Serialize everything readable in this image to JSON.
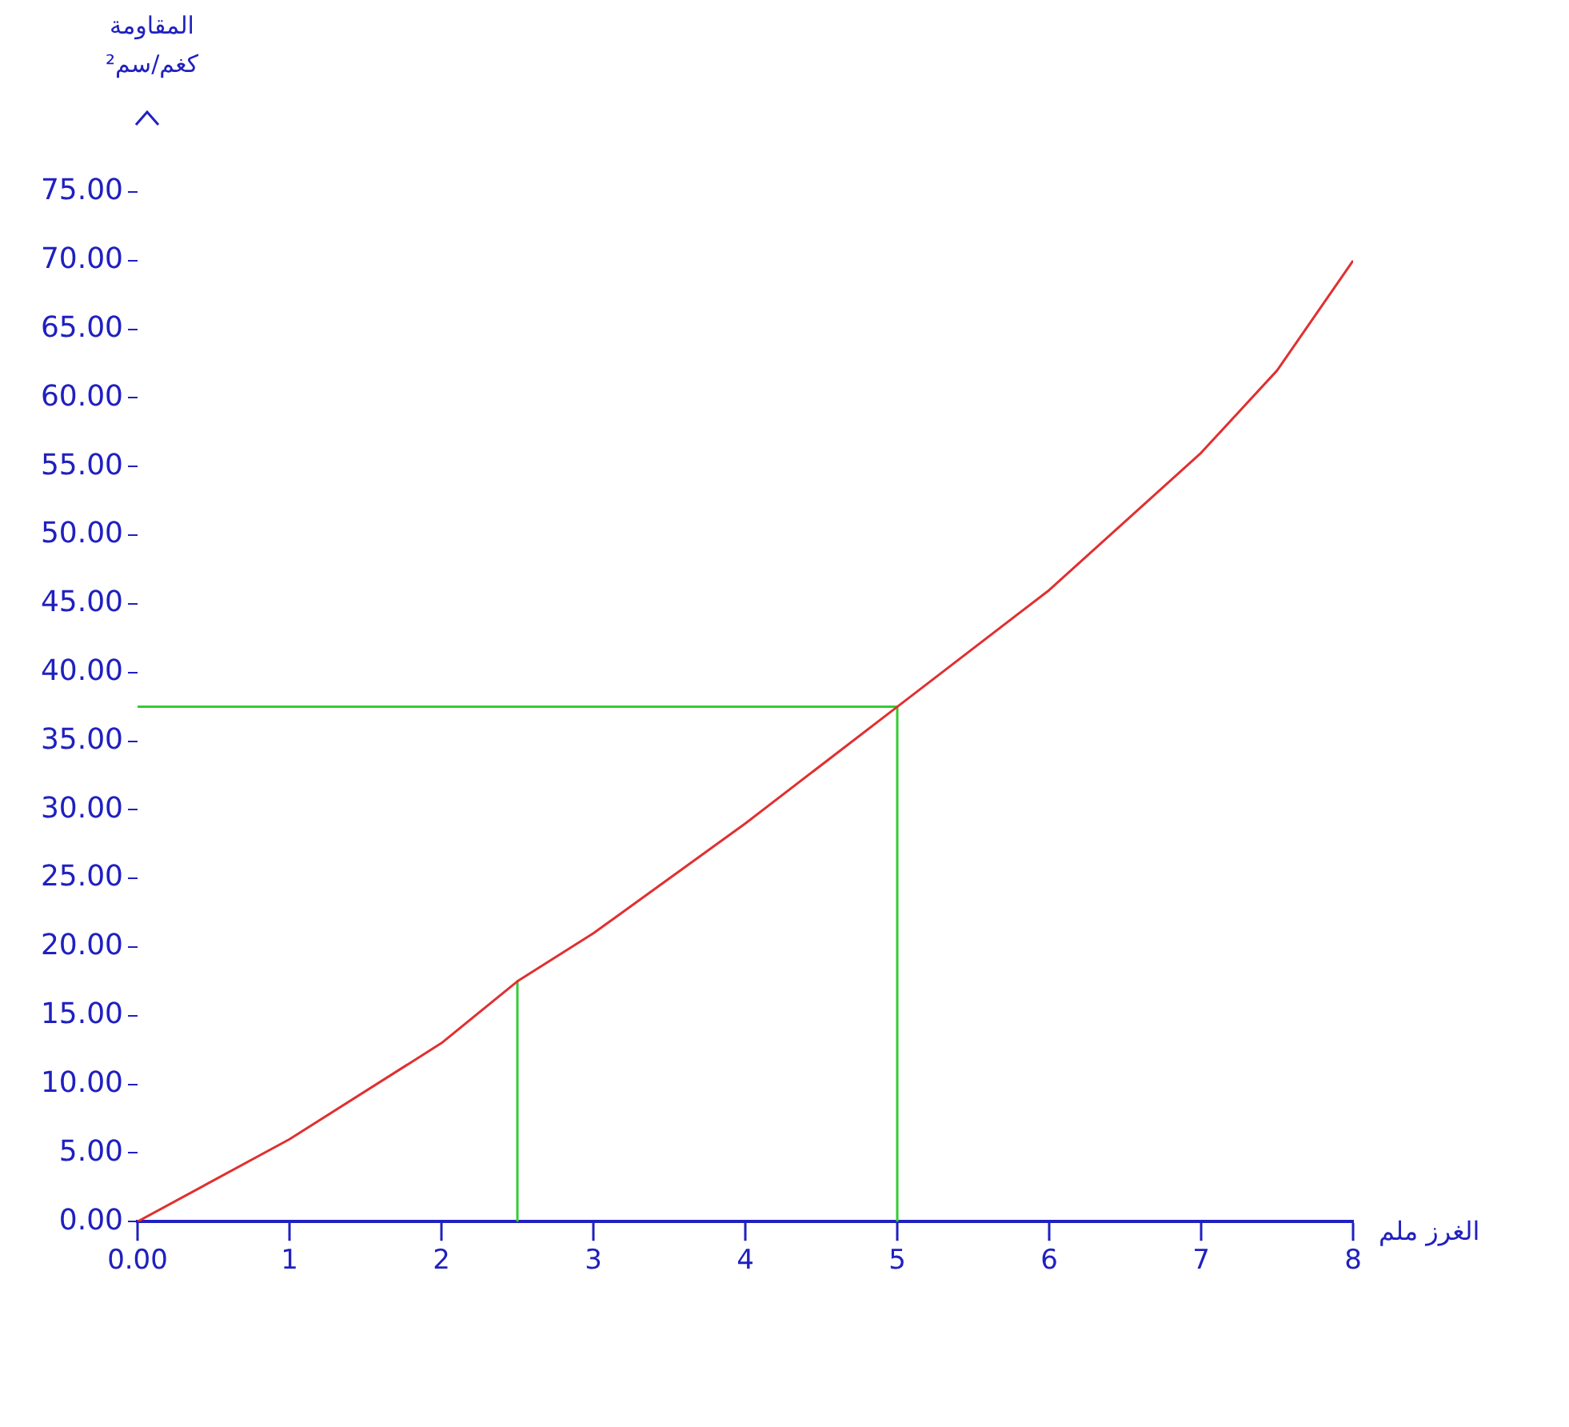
{
  "chart_data": {
    "type": "line",
    "ylabel": "المقاومة\nكغم/سم²",
    "xlabel": "الغرز ملم",
    "xlim": [
      0,
      8
    ],
    "xticks": [
      {
        "value": 0,
        "label": "0.00"
      },
      1,
      2,
      3,
      4,
      5,
      6,
      7,
      8
    ],
    "ylim": [
      0,
      75
    ],
    "yticks": [
      {
        "value": 0,
        "label": "0.00"
      },
      {
        "value": 5,
        "label": "5.00"
      },
      {
        "value": 10,
        "label": "10.00"
      },
      {
        "value": 15,
        "label": "15.00"
      },
      {
        "value": 20,
        "label": "20.00"
      },
      {
        "value": 25,
        "label": "25.00"
      },
      {
        "value": 30,
        "label": "30.00"
      },
      {
        "value": 35,
        "label": "35.00"
      },
      {
        "value": 40,
        "label": "40.00"
      },
      {
        "value": 45,
        "label": "45.00"
      },
      {
        "value": 50,
        "label": "50.00"
      },
      {
        "value": 55,
        "label": "55.00"
      },
      {
        "value": 60,
        "label": "60.00"
      },
      {
        "value": 65,
        "label": "65.00"
      },
      {
        "value": 70,
        "label": "70.00"
      },
      {
        "value": 75,
        "label": "75.00"
      }
    ],
    "grid": false,
    "marker": "none",
    "series": [
      {
        "color": "#e03030",
        "x": [
          0,
          1,
          2,
          2.5,
          3,
          4,
          5,
          6,
          7,
          7.5,
          8
        ],
        "values": [
          0,
          6,
          13,
          17.5,
          21,
          29,
          37.5,
          46,
          56,
          62,
          70
        ]
      },
      {
        "color": "#33cc33",
        "x": [
          0,
          5,
          5
        ],
        "values": [
          37.5,
          37.5,
          0
        ]
      },
      {
        "color": "#33cc33",
        "x": [
          2.5,
          2.5
        ],
        "values": [
          17.5,
          0
        ]
      }
    ]
  }
}
